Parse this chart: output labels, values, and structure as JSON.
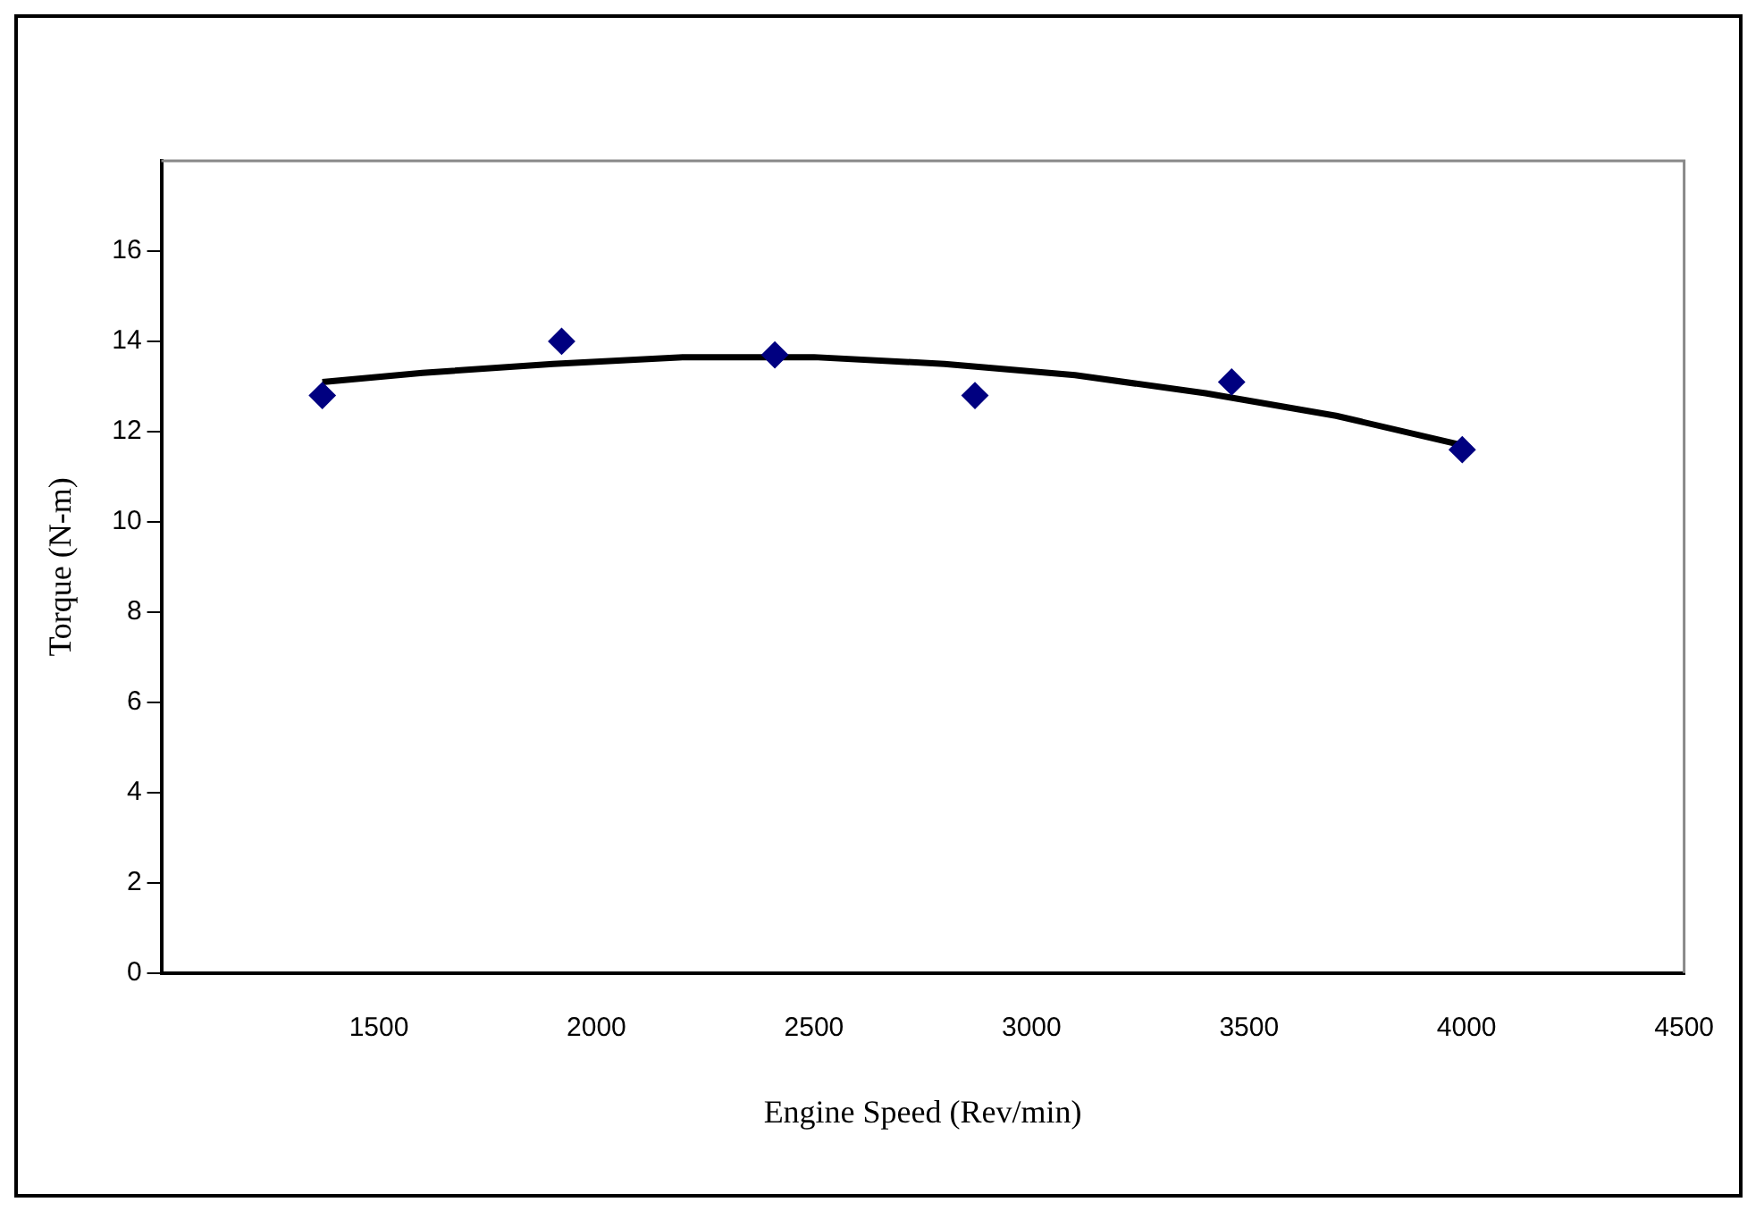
{
  "chart_data": {
    "type": "scatter",
    "xlabel": "Engine Speed (Rev/min)",
    "ylabel": "Torque (N-m)",
    "x": [
      1370,
      1920,
      2410,
      2870,
      3460,
      3990
    ],
    "series": [
      {
        "type": "scatter",
        "color": "#000080",
        "marker": "diamond",
        "values": [
          12.8,
          14.0,
          13.7,
          12.8,
          13.1,
          11.6
        ]
      },
      {
        "type": "line",
        "color": "#000000",
        "marker": "none",
        "x": [
          1370,
          1600,
          1900,
          2200,
          2500,
          2800,
          3100,
          3400,
          3700,
          3990
        ],
        "values": [
          13.1,
          13.3,
          13.5,
          13.65,
          13.65,
          13.5,
          13.25,
          12.85,
          12.35,
          11.7
        ]
      }
    ],
    "xlim": [
      1000,
      4500
    ],
    "xticks": [
      1500,
      2000,
      2500,
      3000,
      3500,
      4000,
      4500
    ],
    "ylim": [
      0,
      18
    ],
    "yticks": [
      0,
      2,
      4,
      6,
      8,
      10,
      12,
      14,
      16
    ],
    "grid": false,
    "legend": false
  }
}
